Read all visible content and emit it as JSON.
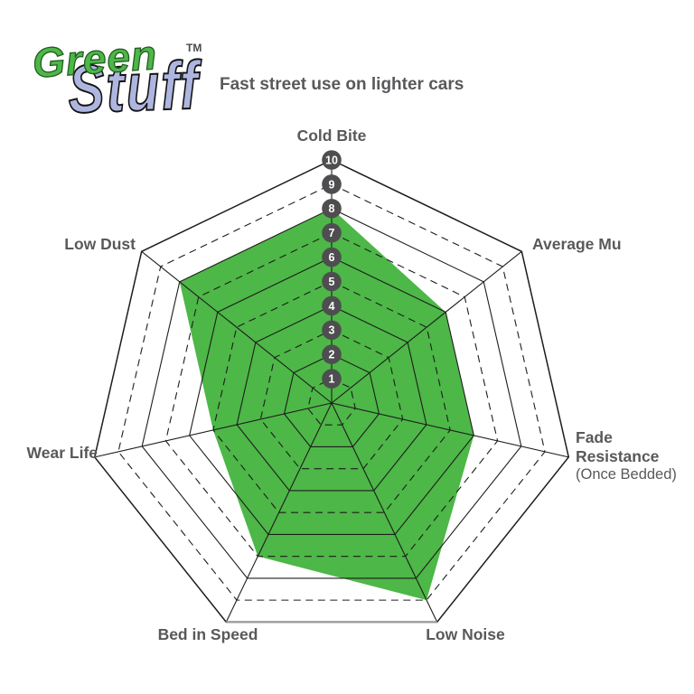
{
  "logo": {
    "word1": "Green",
    "word2": "Stuff",
    "trademark": "TM",
    "green_color": "#4cb748",
    "periwinkle_color": "#aeb6e0"
  },
  "subtitle": "Fast street use on lighter cars",
  "chart_data": {
    "type": "radar",
    "title": "Green Stuff brake pad performance",
    "categories": [
      "Cold Bite",
      "Average Mu",
      "Fade Resistance (Once Bedded)",
      "Low Noise",
      "Bed in Speed",
      "Wear Life",
      "Low Dust"
    ],
    "values": [
      8,
      6,
      6,
      9,
      7,
      5,
      8
    ],
    "scale_min": 0,
    "scale_max": 10,
    "ticks": [
      1,
      2,
      3,
      4,
      5,
      6,
      7,
      8,
      9,
      10
    ],
    "grid": "heptagon rings: solid at even values, dashed at odd values; solid radial axes",
    "legend_position": "none",
    "fill_color": "#4db748",
    "grid_color": "#1d1d1b",
    "outer_bottom_edge_color": "#9c9c9c",
    "badge_fill": "#4e4e50",
    "badge_text_color": "#ffffff",
    "axis_label_color": "#58595b"
  },
  "labels": {
    "cold_bite": "Cold Bite",
    "average_mu": "Average Mu",
    "fade_line1": "Fade",
    "fade_line2": "Resistance",
    "fade_line3": "(Once Bedded)",
    "low_noise": "Low Noise",
    "bed_in_speed": "Bed in Speed",
    "wear_life": "Wear Life",
    "low_dust": "Low Dust"
  }
}
